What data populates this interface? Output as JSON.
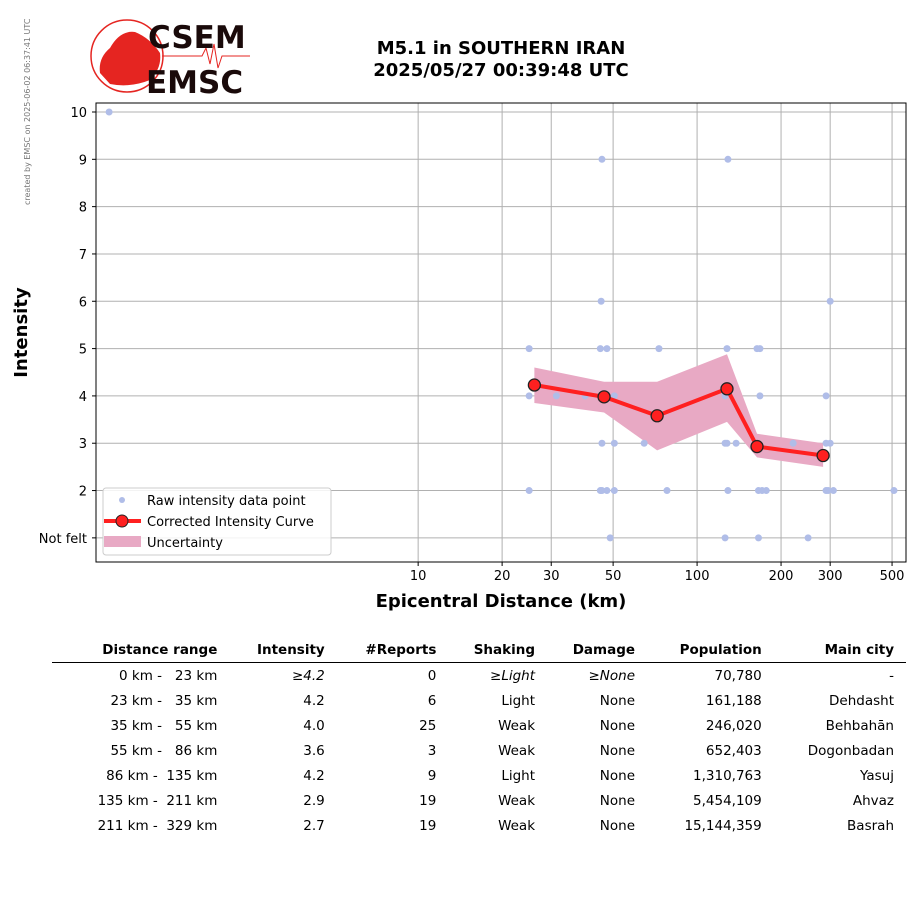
{
  "stamp": "created by EMSC on 2025-06-02 06:37:41 UTC",
  "logo": {
    "line1": "CSEM",
    "line2": "EMSC"
  },
  "title": {
    "line1": "M5.1 in SOUTHERN IRAN",
    "line2": "2025/05/27 00:39:48 UTC"
  },
  "chart_data": {
    "type": "scatter",
    "xlabel": "Epicentral Distance (km)",
    "ylabel": "Intensity",
    "xscale": "log",
    "xlim": [
      0.7,
      561
    ],
    "ylim": [
      0.49,
      10.19
    ],
    "xticks": [
      10,
      20,
      30,
      50,
      100,
      200,
      300,
      500
    ],
    "yticks": [
      {
        "v": 1,
        "label": "Not felt"
      },
      {
        "v": 2,
        "label": "2"
      },
      {
        "v": 3,
        "label": "3"
      },
      {
        "v": 4,
        "label": "4"
      },
      {
        "v": 5,
        "label": "5"
      },
      {
        "v": 6,
        "label": "6"
      },
      {
        "v": 7,
        "label": "7"
      },
      {
        "v": 8,
        "label": "8"
      },
      {
        "v": 9,
        "label": "9"
      },
      {
        "v": 10,
        "label": "10"
      }
    ],
    "grid": true,
    "legend_position": "lower-left",
    "legend": [
      "Raw intensity data point",
      "Corrected Intensity Curve",
      "Uncertainty"
    ],
    "raw_points": [
      [
        0.78,
        10
      ],
      [
        45.6,
        9
      ],
      [
        129,
        9
      ],
      [
        45.3,
        6
      ],
      [
        300,
        6
      ],
      [
        25,
        5
      ],
      [
        45,
        5
      ],
      [
        47.5,
        5
      ],
      [
        73,
        5
      ],
      [
        128,
        5
      ],
      [
        164,
        5
      ],
      [
        168,
        5
      ],
      [
        25,
        4
      ],
      [
        31.3,
        4
      ],
      [
        39.7,
        4
      ],
      [
        50.5,
        4
      ],
      [
        126,
        4
      ],
      [
        168,
        4
      ],
      [
        290,
        4
      ],
      [
        45.6,
        3
      ],
      [
        50.5,
        3
      ],
      [
        64.6,
        3
      ],
      [
        126,
        3
      ],
      [
        128,
        3
      ],
      [
        138,
        3
      ],
      [
        221,
        3
      ],
      [
        290,
        3
      ],
      [
        300,
        3
      ],
      [
        25,
        2
      ],
      [
        45,
        2
      ],
      [
        45.6,
        2
      ],
      [
        47.5,
        2
      ],
      [
        50.5,
        2
      ],
      [
        78,
        2
      ],
      [
        129,
        2
      ],
      [
        166,
        2
      ],
      [
        171,
        2
      ],
      [
        177,
        2
      ],
      [
        290,
        2
      ],
      [
        295,
        2
      ],
      [
        308,
        2
      ],
      [
        508,
        2
      ],
      [
        48.8,
        1
      ],
      [
        126,
        1
      ],
      [
        166,
        1
      ],
      [
        250,
        1
      ]
    ],
    "curve": {
      "x": [
        26.1,
        46.4,
        71.9,
        128,
        164,
        283
      ],
      "y": [
        4.23,
        3.98,
        3.58,
        4.15,
        2.93,
        2.74
      ],
      "upper": [
        4.6,
        4.3,
        4.3,
        4.88,
        3.2,
        3.0
      ],
      "lower": [
        3.85,
        3.65,
        2.85,
        3.45,
        2.7,
        2.5
      ]
    },
    "colors": {
      "raw": "#b0bde8",
      "curve": "#ff2020",
      "band": "#e8a9c4"
    }
  },
  "table": {
    "headers": [
      "Distance range",
      "Intensity",
      "#Reports",
      "Shaking",
      "Damage",
      "Population",
      "Main city"
    ],
    "rows": [
      [
        "0 km -   23 km",
        "≥4.2",
        "0",
        "≥Light",
        "≥None",
        "70,780",
        "-"
      ],
      [
        "23 km -   35 km",
        "4.2",
        "6",
        "Light",
        "None",
        "161,188",
        "Dehdasht"
      ],
      [
        "35 km -   55 km",
        "4.0",
        "25",
        "Weak",
        "None",
        "246,020",
        "Behbahān"
      ],
      [
        "55 km -   86 km",
        "3.6",
        "3",
        "Weak",
        "None",
        "652,403",
        "Dogonbadan"
      ],
      [
        "86 km -  135 km",
        "4.2",
        "9",
        "Light",
        "None",
        "1,310,763",
        "Yasuj"
      ],
      [
        "135 km -  211 km",
        "2.9",
        "19",
        "Weak",
        "None",
        "5,454,109",
        "Ahvaz"
      ],
      [
        "211 km -  329 km",
        "2.7",
        "19",
        "Weak",
        "None",
        "15,144,359",
        "Basrah"
      ]
    ]
  }
}
